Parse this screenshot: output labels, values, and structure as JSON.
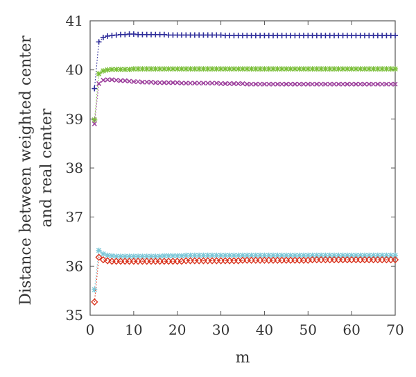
{
  "chart_data": {
    "type": "scatter",
    "xlabel": "m",
    "ylabel_lines": [
      "Distance between weighted center",
      "and real center"
    ],
    "xlim": [
      0,
      70
    ],
    "ylim": [
      35,
      41
    ],
    "x_ticks": [
      0,
      10,
      20,
      30,
      40,
      50,
      60,
      70
    ],
    "y_ticks": [
      35,
      36,
      37,
      38,
      39,
      40,
      41
    ],
    "grid": false,
    "legend": "none",
    "x": [
      1,
      2,
      3,
      4,
      5,
      6,
      7,
      8,
      9,
      10,
      11,
      12,
      13,
      14,
      15,
      16,
      17,
      18,
      19,
      20,
      21,
      22,
      23,
      24,
      25,
      26,
      27,
      28,
      29,
      30,
      31,
      32,
      33,
      34,
      35,
      36,
      37,
      38,
      39,
      40,
      41,
      42,
      43,
      44,
      45,
      46,
      47,
      48,
      49,
      50,
      51,
      52,
      53,
      54,
      55,
      56,
      57,
      58,
      59,
      60,
      61,
      62,
      63,
      64,
      65,
      66,
      67,
      68,
      69,
      70
    ],
    "series": [
      {
        "marker": "plus",
        "color": "#2e2d9a",
        "values": [
          39.62,
          40.57,
          40.66,
          40.69,
          40.7,
          40.71,
          40.72,
          40.72,
          40.73,
          40.73,
          40.72,
          40.72,
          40.72,
          40.72,
          40.72,
          40.72,
          40.72,
          40.71,
          40.71,
          40.71,
          40.71,
          40.71,
          40.71,
          40.71,
          40.71,
          40.71,
          40.71,
          40.71,
          40.71,
          40.71,
          40.7,
          40.7,
          40.7,
          40.7,
          40.7,
          40.7,
          40.7,
          40.7,
          40.7,
          40.7,
          40.7,
          40.7,
          40.7,
          40.7,
          40.7,
          40.7,
          40.7,
          40.7,
          40.7,
          40.7,
          40.7,
          40.7,
          40.7,
          40.7,
          40.7,
          40.7,
          40.7,
          40.7,
          40.7,
          40.7,
          40.7,
          40.7,
          40.7,
          40.7,
          40.7,
          40.7,
          40.7,
          40.7,
          40.7,
          40.7
        ]
      },
      {
        "marker": "star",
        "color": "#7bbf3a",
        "values": [
          38.98,
          39.92,
          39.98,
          40.0,
          40.01,
          40.01,
          40.01,
          40.01,
          40.01,
          40.02,
          40.02,
          40.02,
          40.02,
          40.02,
          40.02,
          40.02,
          40.02,
          40.02,
          40.02,
          40.02,
          40.02,
          40.02,
          40.02,
          40.02,
          40.02,
          40.02,
          40.02,
          40.02,
          40.02,
          40.02,
          40.02,
          40.02,
          40.02,
          40.02,
          40.02,
          40.02,
          40.02,
          40.02,
          40.02,
          40.02,
          40.02,
          40.02,
          40.02,
          40.02,
          40.02,
          40.02,
          40.02,
          40.02,
          40.02,
          40.02,
          40.02,
          40.02,
          40.02,
          40.02,
          40.02,
          40.02,
          40.02,
          40.02,
          40.02,
          40.02,
          40.02,
          40.02,
          40.02,
          40.02,
          40.02,
          40.02,
          40.02,
          40.02,
          40.02,
          40.02
        ]
      },
      {
        "marker": "x",
        "color": "#9b3d9b",
        "values": [
          38.9,
          39.72,
          39.79,
          39.8,
          39.8,
          39.79,
          39.78,
          39.78,
          39.77,
          39.76,
          39.76,
          39.75,
          39.75,
          39.75,
          39.74,
          39.74,
          39.74,
          39.74,
          39.74,
          39.74,
          39.73,
          39.73,
          39.73,
          39.73,
          39.73,
          39.73,
          39.73,
          39.73,
          39.73,
          39.72,
          39.72,
          39.72,
          39.72,
          39.72,
          39.72,
          39.71,
          39.71,
          39.71,
          39.71,
          39.71,
          39.71,
          39.71,
          39.71,
          39.71,
          39.71,
          39.71,
          39.71,
          39.71,
          39.71,
          39.71,
          39.71,
          39.71,
          39.71,
          39.71,
          39.71,
          39.71,
          39.71,
          39.71,
          39.71,
          39.71,
          39.71,
          39.71,
          39.71,
          39.71,
          39.71,
          39.71,
          39.71,
          39.71,
          39.71,
          39.71
        ]
      },
      {
        "marker": "star",
        "color": "#7ec8d8",
        "values": [
          35.52,
          36.32,
          36.25,
          36.22,
          36.21,
          36.2,
          36.2,
          36.2,
          36.2,
          36.2,
          36.2,
          36.2,
          36.2,
          36.2,
          36.2,
          36.2,
          36.21,
          36.21,
          36.21,
          36.21,
          36.21,
          36.22,
          36.22,
          36.22,
          36.22,
          36.22,
          36.22,
          36.22,
          36.22,
          36.22,
          36.22,
          36.22,
          36.22,
          36.22,
          36.22,
          36.22,
          36.22,
          36.22,
          36.22,
          36.22,
          36.22,
          36.22,
          36.22,
          36.22,
          36.22,
          36.22,
          36.22,
          36.22,
          36.22,
          36.22,
          36.22,
          36.22,
          36.22,
          36.22,
          36.22,
          36.22,
          36.22,
          36.22,
          36.22,
          36.22,
          36.22,
          36.22,
          36.22,
          36.22,
          36.22,
          36.22,
          36.22,
          36.22,
          36.22,
          36.22
        ]
      },
      {
        "marker": "diamond",
        "color": "#d9341f",
        "values": [
          35.27,
          36.18,
          36.13,
          36.11,
          36.1,
          36.1,
          36.1,
          36.1,
          36.1,
          36.1,
          36.1,
          36.1,
          36.1,
          36.1,
          36.1,
          36.1,
          36.1,
          36.1,
          36.1,
          36.1,
          36.1,
          36.11,
          36.11,
          36.11,
          36.11,
          36.11,
          36.11,
          36.11,
          36.11,
          36.11,
          36.11,
          36.11,
          36.11,
          36.11,
          36.12,
          36.12,
          36.12,
          36.12,
          36.12,
          36.12,
          36.12,
          36.12,
          36.12,
          36.12,
          36.12,
          36.12,
          36.12,
          36.12,
          36.12,
          36.12,
          36.13,
          36.13,
          36.13,
          36.13,
          36.13,
          36.13,
          36.13,
          36.13,
          36.13,
          36.13,
          36.13,
          36.13,
          36.13,
          36.13,
          36.13,
          36.13,
          36.13,
          36.13,
          36.13,
          36.13
        ]
      }
    ]
  }
}
